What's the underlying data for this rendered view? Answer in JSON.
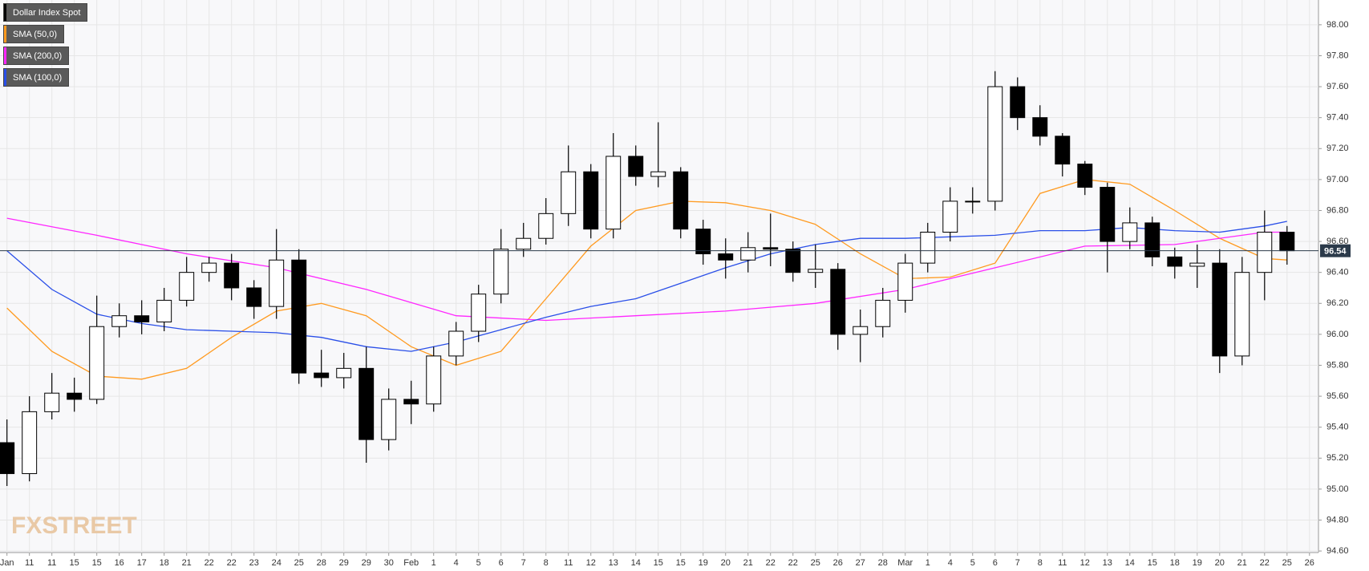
{
  "chart_data": {
    "type": "candlestick",
    "watermark": "FXSTREET",
    "ylim": [
      94.59,
      98.16
    ],
    "yticks": [
      {
        "value": 94.6,
        "label": "94.60"
      },
      {
        "value": 94.8,
        "label": "94.80"
      },
      {
        "value": 95,
        "label": "95.00"
      },
      {
        "value": 95.2,
        "label": "95.20"
      },
      {
        "value": 95.4,
        "label": "95.40"
      },
      {
        "value": 95.6,
        "label": "95.60"
      },
      {
        "value": 95.8,
        "label": "95.80"
      },
      {
        "value": 96,
        "label": "96.00"
      },
      {
        "value": 96.2,
        "label": "96.20"
      },
      {
        "value": 96.4,
        "label": "96.40"
      },
      {
        "value": 96.6,
        "label": "96.60"
      },
      {
        "value": 96.8,
        "label": "96.80"
      },
      {
        "value": 97,
        "label": "97.00"
      },
      {
        "value": 97.2,
        "label": "97.20"
      },
      {
        "value": 97.4,
        "label": "97.40"
      },
      {
        "value": 97.6,
        "label": "97.60"
      },
      {
        "value": 97.8,
        "label": "97.80"
      },
      {
        "value": 98,
        "label": "98.00"
      }
    ],
    "xlim": [
      -0.31,
      58.4
    ],
    "xticks": [
      {
        "value": 0,
        "label": "Jan"
      },
      {
        "value": 1,
        "label": "11"
      },
      {
        "value": 2,
        "label": "11"
      },
      {
        "value": 3,
        "label": "15"
      },
      {
        "value": 4,
        "label": "15"
      },
      {
        "value": 5,
        "label": "16"
      },
      {
        "value": 6,
        "label": "17"
      },
      {
        "value": 7,
        "label": "18"
      },
      {
        "value": 8,
        "label": "21"
      },
      {
        "value": 9,
        "label": "22"
      },
      {
        "value": 10,
        "label": "22"
      },
      {
        "value": 11,
        "label": "23"
      },
      {
        "value": 12,
        "label": "24"
      },
      {
        "value": 13,
        "label": "25"
      },
      {
        "value": 14,
        "label": "28"
      },
      {
        "value": 15,
        "label": "29"
      },
      {
        "value": 16,
        "label": "29"
      },
      {
        "value": 17,
        "label": "30"
      },
      {
        "value": 18,
        "label": "Feb"
      },
      {
        "value": 19,
        "label": "1"
      },
      {
        "value": 20,
        "label": "4"
      },
      {
        "value": 21,
        "label": "5"
      },
      {
        "value": 22,
        "label": "6"
      },
      {
        "value": 23,
        "label": "7"
      },
      {
        "value": 24,
        "label": "8"
      },
      {
        "value": 25,
        "label": "11"
      },
      {
        "value": 26,
        "label": "12"
      },
      {
        "value": 27,
        "label": "13"
      },
      {
        "value": 28,
        "label": "14"
      },
      {
        "value": 29,
        "label": "15"
      },
      {
        "value": 30,
        "label": "15"
      },
      {
        "value": 31,
        "label": "19"
      },
      {
        "value": 32,
        "label": "20"
      },
      {
        "value": 33,
        "label": "21"
      },
      {
        "value": 34,
        "label": "22"
      },
      {
        "value": 35,
        "label": "22"
      },
      {
        "value": 36,
        "label": "25"
      },
      {
        "value": 37,
        "label": "26"
      },
      {
        "value": 38,
        "label": "27"
      },
      {
        "value": 39,
        "label": "28"
      },
      {
        "value": 40,
        "label": "Mar"
      },
      {
        "value": 41,
        "label": "1"
      },
      {
        "value": 42,
        "label": "4"
      },
      {
        "value": 43,
        "label": "5"
      },
      {
        "value": 44,
        "label": "6"
      },
      {
        "value": 45,
        "label": "7"
      },
      {
        "value": 46,
        "label": "8"
      },
      {
        "value": 47,
        "label": "11"
      },
      {
        "value": 48,
        "label": "12"
      },
      {
        "value": 49,
        "label": "13"
      },
      {
        "value": 50,
        "label": "14"
      },
      {
        "value": 51,
        "label": "15"
      },
      {
        "value": 52,
        "label": "18"
      },
      {
        "value": 53,
        "label": "19"
      },
      {
        "value": 54,
        "label": "20"
      },
      {
        "value": 55,
        "label": "21"
      },
      {
        "value": 56,
        "label": "22"
      },
      {
        "value": 57,
        "label": "25"
      },
      {
        "value": 58,
        "label": "26"
      }
    ],
    "grid": true,
    "candles": {
      "name": "Dollar Index Spot",
      "color": "#000000",
      "x": [
        0,
        1,
        2,
        3,
        4,
        5,
        6,
        7,
        8,
        9,
        10,
        11,
        12,
        13,
        14,
        15,
        16,
        17,
        18,
        19,
        20,
        21,
        22,
        23,
        24,
        25,
        26,
        27,
        28,
        29,
        30,
        31,
        32,
        33,
        34,
        35,
        36,
        37,
        38,
        39,
        40,
        41,
        42,
        43,
        44,
        45,
        46,
        47,
        48,
        49,
        50,
        51,
        52,
        53,
        54,
        55,
        56,
        57
      ],
      "open": [
        95.3,
        95.1,
        95.5,
        95.62,
        95.58,
        96.05,
        96.12,
        96.08,
        96.22,
        96.4,
        96.46,
        96.3,
        96.18,
        96.48,
        95.75,
        95.72,
        95.78,
        95.32,
        95.58,
        95.55,
        95.86,
        96.02,
        96.26,
        96.55,
        96.62,
        96.78,
        97.05,
        96.68,
        97.15,
        97.02,
        97.05,
        96.68,
        96.52,
        96.48,
        96.56,
        96.55,
        96.4,
        96.42,
        96.0,
        96.05,
        96.22,
        96.46,
        96.66,
        96.86,
        96.86,
        97.6,
        97.4,
        97.28,
        97.1,
        96.95,
        96.6,
        96.72,
        96.5,
        96.44,
        96.46,
        95.86,
        96.4,
        96.66
      ],
      "high": [
        95.45,
        95.6,
        95.75,
        95.72,
        96.25,
        96.2,
        96.22,
        96.3,
        96.5,
        96.5,
        96.52,
        96.35,
        96.68,
        96.55,
        95.9,
        95.88,
        95.92,
        95.65,
        95.7,
        95.92,
        96.08,
        96.32,
        96.68,
        96.72,
        96.88,
        97.22,
        97.1,
        97.3,
        97.22,
        97.37,
        97.08,
        96.74,
        96.62,
        96.66,
        96.78,
        96.6,
        96.58,
        96.46,
        96.16,
        96.3,
        96.52,
        96.72,
        96.95,
        96.95,
        97.7,
        97.66,
        97.48,
        97.3,
        97.12,
        96.98,
        96.82,
        96.76,
        96.56,
        96.58,
        96.55,
        96.5,
        96.8,
        96.7
      ],
      "low": [
        95.02,
        95.05,
        95.45,
        95.5,
        95.55,
        95.98,
        96.0,
        96.02,
        96.18,
        96.34,
        96.22,
        96.1,
        96.1,
        95.68,
        95.66,
        95.65,
        95.17,
        95.25,
        95.42,
        95.5,
        95.8,
        95.95,
        96.2,
        96.5,
        96.58,
        96.7,
        96.62,
        96.62,
        96.96,
        96.95,
        96.62,
        96.45,
        96.36,
        96.4,
        96.44,
        96.34,
        96.3,
        95.9,
        95.82,
        95.98,
        96.14,
        96.4,
        96.6,
        96.78,
        96.8,
        97.32,
        97.22,
        97.02,
        96.9,
        96.4,
        96.55,
        96.44,
        96.36,
        96.3,
        95.75,
        95.8,
        96.22,
        96.45
      ],
      "close": [
        95.1,
        95.5,
        95.62,
        95.58,
        96.05,
        96.12,
        96.08,
        96.22,
        96.4,
        96.46,
        96.3,
        96.18,
        96.48,
        95.75,
        95.72,
        95.78,
        95.32,
        95.58,
        95.55,
        95.86,
        96.02,
        96.26,
        96.55,
        96.62,
        96.78,
        97.05,
        96.68,
        97.15,
        97.02,
        97.05,
        96.68,
        96.52,
        96.48,
        96.56,
        96.55,
        96.4,
        96.42,
        96.0,
        96.05,
        96.22,
        96.46,
        96.66,
        96.86,
        96.86,
        97.6,
        97.4,
        97.28,
        97.1,
        96.95,
        96.6,
        96.72,
        96.5,
        96.44,
        96.46,
        95.86,
        96.4,
        96.66,
        96.54
      ]
    },
    "lines": [
      {
        "name": "SMA (50,0)",
        "color": "#ff9a1f",
        "x": [
          0,
          2,
          4,
          6,
          8,
          10,
          12,
          14,
          16,
          18,
          20,
          22,
          24,
          26,
          28,
          30,
          32,
          34,
          36,
          38,
          40,
          42,
          44,
          46,
          48,
          50,
          52,
          54,
          56,
          57
        ],
        "values": [
          96.17,
          95.89,
          95.73,
          95.71,
          95.78,
          95.98,
          96.15,
          96.2,
          96.12,
          95.92,
          95.8,
          95.89,
          96.23,
          96.57,
          96.8,
          96.86,
          96.85,
          96.8,
          96.71,
          96.52,
          96.36,
          96.37,
          96.46,
          96.91,
          97.0,
          96.97,
          96.8,
          96.62,
          96.49,
          96.48
        ]
      },
      {
        "name": "SMA (200,0)",
        "color": "#ff26ff",
        "x": [
          0,
          4,
          8,
          12,
          16,
          20,
          24,
          28,
          32,
          36,
          40,
          44,
          48,
          52,
          56,
          57
        ],
        "values": [
          96.75,
          96.64,
          96.52,
          96.43,
          96.29,
          96.12,
          96.09,
          96.12,
          96.15,
          96.2,
          96.29,
          96.43,
          96.57,
          96.58,
          96.66,
          96.66
        ]
      },
      {
        "name": "SMA (100,0)",
        "color": "#2a4fe8",
        "x": [
          0,
          2,
          4,
          6,
          8,
          10,
          12,
          14,
          16,
          18,
          20,
          22,
          24,
          26,
          28,
          30,
          32,
          34,
          36,
          38,
          40,
          42,
          44,
          46,
          48,
          50,
          52,
          54,
          56,
          57
        ],
        "values": [
          96.54,
          96.29,
          96.13,
          96.07,
          96.03,
          96.02,
          96.01,
          95.98,
          95.92,
          95.89,
          95.95,
          96.03,
          96.11,
          96.18,
          96.23,
          96.33,
          96.43,
          96.52,
          96.58,
          96.62,
          96.62,
          96.63,
          96.64,
          96.67,
          96.67,
          96.69,
          96.67,
          96.66,
          96.7,
          96.73
        ]
      }
    ]
  }
}
